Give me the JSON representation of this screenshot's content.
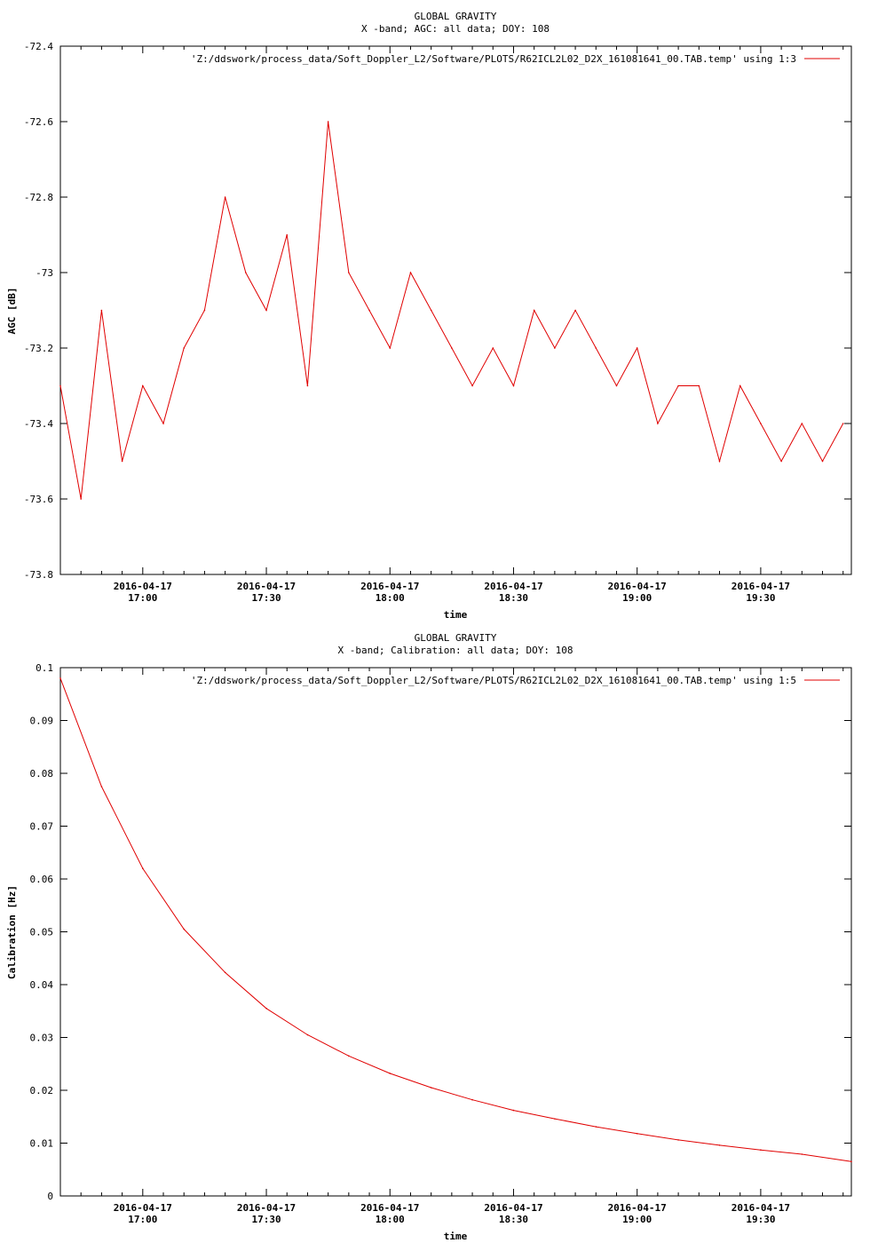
{
  "colors": {
    "series": "#e00000",
    "axis": "#000000",
    "background": "#ffffff"
  },
  "chart_data": [
    {
      "type": "line",
      "title": "GLOBAL GRAVITY",
      "subtitle": "X -band; AGC: all data; DOY: 108",
      "xlabel": "time",
      "ylabel": "AGC [dB]",
      "legend": {
        "label": "'Z:/ddswork/process_data/Soft_Doppler_L2/Software/PLOTS/R62ICL2L02_D2X_161081641_00.TAB.temp' using 1:3",
        "placement": "top-right"
      },
      "xlim": [
        "2016-04-17 16:40",
        "2016-04-17 19:52"
      ],
      "ylim": [
        -73.8,
        -72.4
      ],
      "yticks": [
        "-72.4",
        "-72.6",
        "-72.8",
        "-73",
        "-73.2",
        "-73.4",
        "-73.6",
        "-73.8"
      ],
      "ytick_values": [
        -72.4,
        -72.6,
        -72.8,
        -73.0,
        -73.2,
        -73.4,
        -73.6,
        -73.8
      ],
      "xticks": [
        {
          "date": "2016-04-17",
          "time": "17:00",
          "at": "2016-04-17 17:00"
        },
        {
          "date": "2016-04-17",
          "time": "17:30",
          "at": "2016-04-17 17:30"
        },
        {
          "date": "2016-04-17",
          "time": "18:00",
          "at": "2016-04-17 18:00"
        },
        {
          "date": "2016-04-17",
          "time": "18:30",
          "at": "2016-04-17 18:30"
        },
        {
          "date": "2016-04-17",
          "time": "19:00",
          "at": "2016-04-17 19:00"
        },
        {
          "date": "2016-04-17",
          "time": "19:30",
          "at": "2016-04-17 19:30"
        }
      ],
      "grid": false,
      "series": [
        {
          "x": [
            "2016-04-17 16:40",
            "2016-04-17 16:45",
            "2016-04-17 16:50",
            "2016-04-17 16:55",
            "2016-04-17 17:00",
            "2016-04-17 17:05",
            "2016-04-17 17:10",
            "2016-04-17 17:15",
            "2016-04-17 17:20",
            "2016-04-17 17:25",
            "2016-04-17 17:30",
            "2016-04-17 17:35",
            "2016-04-17 17:40",
            "2016-04-17 17:45",
            "2016-04-17 17:50",
            "2016-04-17 17:55",
            "2016-04-17 18:00",
            "2016-04-17 18:05",
            "2016-04-17 18:10",
            "2016-04-17 18:15",
            "2016-04-17 18:20",
            "2016-04-17 18:25",
            "2016-04-17 18:30",
            "2016-04-17 18:35",
            "2016-04-17 18:40",
            "2016-04-17 18:45",
            "2016-04-17 18:50",
            "2016-04-17 18:55",
            "2016-04-17 19:00",
            "2016-04-17 19:05",
            "2016-04-17 19:10",
            "2016-04-17 19:15",
            "2016-04-17 19:20",
            "2016-04-17 19:25",
            "2016-04-17 19:30",
            "2016-04-17 19:35",
            "2016-04-17 19:40",
            "2016-04-17 19:45",
            "2016-04-17 19:50"
          ],
          "values": [
            -73.3,
            -73.6,
            -73.1,
            -73.5,
            -73.3,
            -73.4,
            -73.2,
            -73.1,
            -72.8,
            -73.0,
            -73.1,
            -72.9,
            -73.3,
            -72.6,
            -73.0,
            -73.1,
            -73.2,
            -73.0,
            -73.1,
            -73.2,
            -73.3,
            -73.2,
            -73.3,
            -73.1,
            -73.2,
            -73.1,
            -73.2,
            -73.3,
            -73.2,
            -73.4,
            -73.3,
            -73.3,
            -73.5,
            -73.3,
            -73.4,
            -73.5,
            -73.4,
            -73.5,
            -73.4
          ]
        }
      ]
    },
    {
      "type": "line",
      "title": "GLOBAL GRAVITY",
      "subtitle": "X -band; Calibration: all data; DOY: 108",
      "xlabel": "time",
      "ylabel": "Calibration [Hz]",
      "legend": {
        "label": "'Z:/ddswork/process_data/Soft_Doppler_L2/Software/PLOTS/R62ICL2L02_D2X_161081641_00.TAB.temp' using 1:5",
        "placement": "top-right"
      },
      "xlim": [
        "2016-04-17 16:40",
        "2016-04-17 19:52"
      ],
      "ylim": [
        0,
        0.1
      ],
      "yticks": [
        "0.1",
        "0.09",
        "0.08",
        "0.07",
        "0.06",
        "0.05",
        "0.04",
        "0.03",
        "0.02",
        "0.01",
        "0"
      ],
      "ytick_values": [
        0.1,
        0.09,
        0.08,
        0.07,
        0.06,
        0.05,
        0.04,
        0.03,
        0.02,
        0.01,
        0.0
      ],
      "xticks": [
        {
          "date": "2016-04-17",
          "time": "17:00",
          "at": "2016-04-17 17:00"
        },
        {
          "date": "2016-04-17",
          "time": "17:30",
          "at": "2016-04-17 17:30"
        },
        {
          "date": "2016-04-17",
          "time": "18:00",
          "at": "2016-04-17 18:00"
        },
        {
          "date": "2016-04-17",
          "time": "18:30",
          "at": "2016-04-17 18:30"
        },
        {
          "date": "2016-04-17",
          "time": "19:00",
          "at": "2016-04-17 19:00"
        },
        {
          "date": "2016-04-17",
          "time": "19:30",
          "at": "2016-04-17 19:30"
        }
      ],
      "grid": false,
      "series": [
        {
          "x": [
            "2016-04-17 16:40",
            "2016-04-17 16:50",
            "2016-04-17 17:00",
            "2016-04-17 17:10",
            "2016-04-17 17:20",
            "2016-04-17 17:30",
            "2016-04-17 17:40",
            "2016-04-17 17:50",
            "2016-04-17 18:00",
            "2016-04-17 18:10",
            "2016-04-17 18:20",
            "2016-04-17 18:30",
            "2016-04-17 18:40",
            "2016-04-17 18:50",
            "2016-04-17 19:00",
            "2016-04-17 19:10",
            "2016-04-17 19:20",
            "2016-04-17 19:30",
            "2016-04-17 19:40",
            "2016-04-17 19:52"
          ],
          "values": [
            0.098,
            0.0775,
            0.062,
            0.0505,
            0.0423,
            0.0355,
            0.0305,
            0.0265,
            0.0232,
            0.0205,
            0.0182,
            0.0162,
            0.0146,
            0.0131,
            0.0118,
            0.0106,
            0.0096,
            0.0087,
            0.0079,
            0.0065
          ]
        }
      ]
    }
  ]
}
